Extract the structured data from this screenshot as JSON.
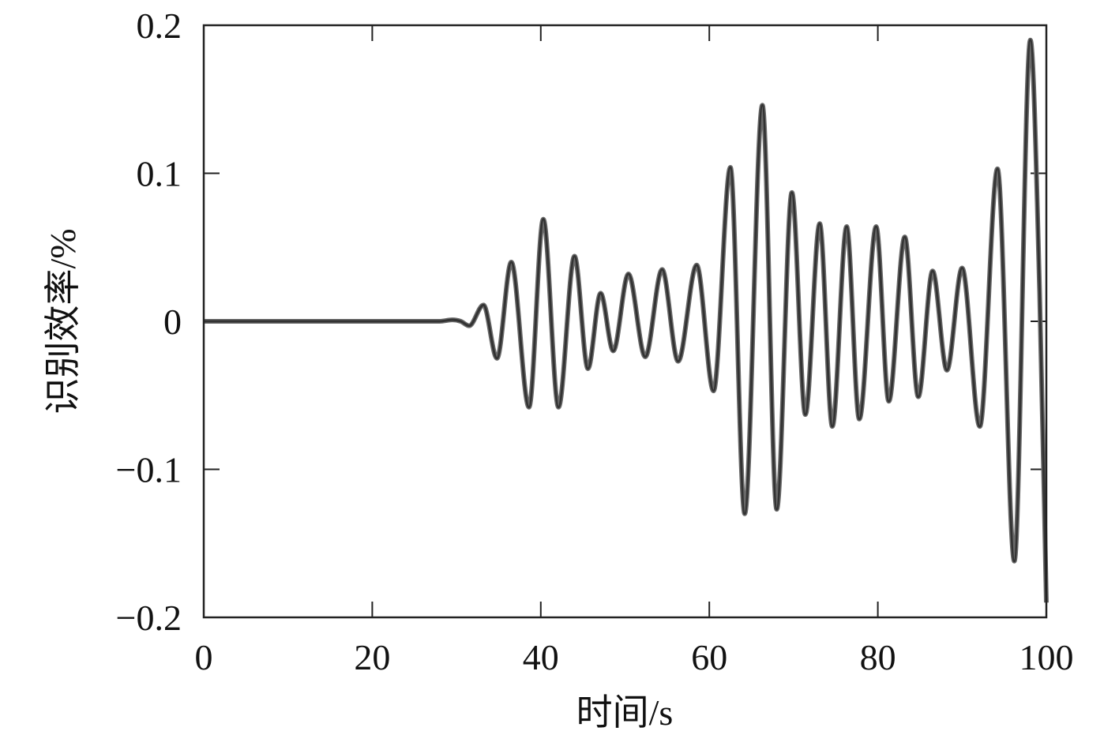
{
  "chart_data": {
    "type": "line",
    "xlabel": "时间/s",
    "ylabel": "识别效率/%",
    "xlim": [
      0,
      100
    ],
    "ylim": [
      -0.2,
      0.2
    ],
    "grid": false,
    "legend": "none",
    "x_ticks": [
      {
        "value": 0,
        "label": "0"
      },
      {
        "value": 20,
        "label": "20"
      },
      {
        "value": 40,
        "label": "40"
      },
      {
        "value": 60,
        "label": "60"
      },
      {
        "value": 80,
        "label": "80"
      },
      {
        "value": 100,
        "label": "100"
      }
    ],
    "y_ticks": [
      {
        "value": 0.2,
        "label": "0.2"
      },
      {
        "value": 0.1,
        "label": "0.1"
      },
      {
        "value": 0,
        "label": "0"
      },
      {
        "value": -0.1,
        "label": "−0.1"
      },
      {
        "value": -0.2,
        "label": "−0.2"
      }
    ],
    "line_color": "#333333",
    "series": [
      {
        "x": [
          0,
          10,
          20,
          28,
          29.5,
          30.5,
          31.5,
          33.2,
          34.8,
          36.5,
          38.6,
          40.3,
          42.1,
          44.0,
          45.6,
          47.1,
          48.6,
          50.4,
          52.4,
          54.4,
          56.3,
          58.5,
          60.5,
          62.5,
          64.2,
          66.3,
          68.0,
          69.8,
          71.4,
          73.1,
          74.6,
          76.3,
          77.8,
          79.8,
          81.3,
          83.2,
          84.8,
          86.5,
          88.2,
          90.0,
          92.1,
          94.2,
          96.2,
          98.1,
          99.2,
          100
        ],
        "y": [
          0,
          0,
          0,
          0,
          0.001,
          0,
          -0.003,
          0.011,
          -0.025,
          0.04,
          -0.058,
          0.069,
          -0.058,
          0.044,
          -0.032,
          0.019,
          -0.02,
          0.032,
          -0.024,
          0.035,
          -0.027,
          0.038,
          -0.047,
          0.104,
          -0.13,
          0.146,
          -0.127,
          0.087,
          -0.063,
          0.066,
          -0.071,
          0.064,
          -0.066,
          0.064,
          -0.054,
          0.057,
          -0.051,
          0.034,
          -0.033,
          0.036,
          -0.071,
          0.103,
          -0.162,
          0.19,
          0.02,
          -0.19
        ]
      }
    ]
  }
}
